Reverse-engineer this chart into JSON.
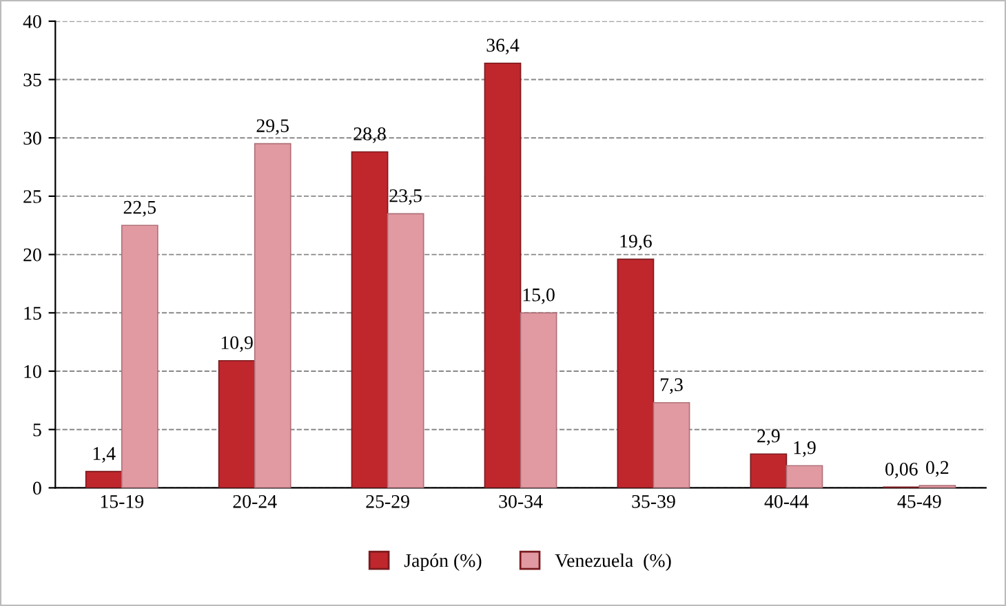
{
  "chart_data": {
    "type": "bar",
    "categories": [
      "15-19",
      "20-24",
      "25-29",
      "30-34",
      "35-39",
      "40-44",
      "45-49"
    ],
    "series": [
      {
        "name": "Japón (%)",
        "color": "#c0272d",
        "values": [
          1.4,
          10.9,
          28.8,
          36.4,
          19.6,
          2.9,
          0.06
        ],
        "value_labels": [
          "1,4",
          "10,9",
          "28,8",
          "36,4",
          "19,6",
          "2,9",
          "0,06"
        ]
      },
      {
        "name": "Venezuela  (%)",
        "color": "#e29aa2",
        "values": [
          22.5,
          29.5,
          23.5,
          15.0,
          7.3,
          1.9,
          0.2
        ],
        "value_labels": [
          "22,5",
          "29,5",
          "23,5",
          "15,0",
          "7,3",
          "1,9",
          "0,2"
        ]
      }
    ],
    "ylim": [
      0,
      40
    ],
    "yticks": [
      0,
      5,
      10,
      15,
      20,
      25,
      30,
      35,
      40
    ],
    "grid": "y",
    "legend": "bottom"
  }
}
